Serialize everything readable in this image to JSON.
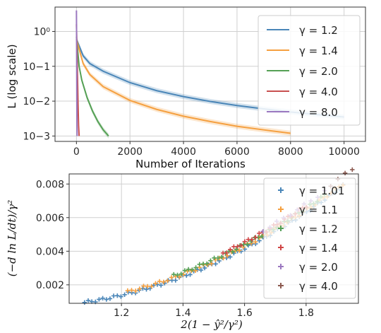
{
  "chart_data": [
    {
      "type": "line",
      "xlabel": "Number of Iterations",
      "ylabel": "L (log scale)",
      "yscale": "log",
      "xlim": [
        -800,
        10800
      ],
      "ylim": [
        0.0007,
        5
      ],
      "xticks": [
        0,
        2000,
        4000,
        6000,
        8000,
        10000
      ],
      "xtick_labels": [
        "0",
        "2000",
        "4000",
        "6000",
        "8000",
        "10000"
      ],
      "yticks": [
        0.001,
        0.01,
        0.1,
        1
      ],
      "ytick_labels": [
        "10−3",
        "10−2",
        "10−1",
        "10⁰"
      ],
      "grid": true,
      "legend_position": "top-right",
      "series": [
        {
          "name": "γ = 1.2",
          "color": "#4a86b8",
          "points": [
            [
              0,
              0.6
            ],
            [
              250,
              0.2
            ],
            [
              500,
              0.12
            ],
            [
              1000,
              0.072
            ],
            [
              2000,
              0.034
            ],
            [
              3000,
              0.02
            ],
            [
              4000,
              0.0135
            ],
            [
              5000,
              0.0098
            ],
            [
              6000,
              0.0075
            ],
            [
              7000,
              0.006
            ],
            [
              8000,
              0.0049
            ],
            [
              9000,
              0.0041
            ],
            [
              10000,
              0.0035
            ]
          ]
        },
        {
          "name": "γ = 1.4",
          "color": "#f5a040",
          "points": [
            [
              0,
              0.6
            ],
            [
              250,
              0.12
            ],
            [
              500,
              0.058
            ],
            [
              1000,
              0.026
            ],
            [
              2000,
              0.0105
            ],
            [
              3000,
              0.0058
            ],
            [
              4000,
              0.0037
            ],
            [
              5000,
              0.0026
            ],
            [
              6000,
              0.0019
            ],
            [
              7000,
              0.0015
            ],
            [
              8000,
              0.0012
            ]
          ]
        },
        {
          "name": "γ = 2.0",
          "color": "#55a055",
          "points": [
            [
              0,
              0.7
            ],
            [
              100,
              0.1
            ],
            [
              200,
              0.04
            ],
            [
              400,
              0.0125
            ],
            [
              600,
              0.0052
            ],
            [
              800,
              0.0026
            ],
            [
              1000,
              0.0015
            ],
            [
              1200,
              0.001
            ]
          ]
        },
        {
          "name": "γ = 4.0",
          "color": "#c85050",
          "points": [
            [
              0,
              1.6
            ],
            [
              20,
              0.3
            ],
            [
              40,
              0.05
            ],
            [
              60,
              0.008
            ],
            [
              80,
              0.002
            ],
            [
              100,
              0.001
            ]
          ]
        },
        {
          "name": "γ = 8.0",
          "color": "#9b78c0",
          "points": [
            [
              0,
              4.0
            ],
            [
              5,
              0.8
            ],
            [
              10,
              0.1
            ],
            [
              15,
              0.012
            ],
            [
              20,
              0.002
            ],
            [
              25,
              0.001
            ]
          ]
        }
      ]
    },
    {
      "type": "scatter",
      "xlabel": "2(1 − ŷ²/γ²)",
      "ylabel": "(−d ln L/dt)/γ²",
      "xlim": [
        1.03,
        1.97
      ],
      "ylim": [
        0.0009,
        0.0086
      ],
      "xticks": [
        1.2,
        1.4,
        1.6,
        1.8
      ],
      "xtick_labels": [
        "1.2",
        "1.4",
        "1.6",
        "1.8"
      ],
      "yticks": [
        0.002,
        0.004,
        0.006,
        0.008
      ],
      "ytick_labels": [
        "0.002",
        "0.004",
        "0.006",
        "0.008"
      ],
      "grid": true,
      "legend_position": "top-right",
      "marker": "plus",
      "series": [
        {
          "name": "γ = 1.01",
          "color": "#4a86b8",
          "x_range": [
            1.08,
            1.92
          ],
          "count": 72
        },
        {
          "name": "γ = 1.1",
          "color": "#f5a040",
          "x_range": [
            1.22,
            1.92
          ],
          "count": 55
        },
        {
          "name": "γ = 1.2",
          "color": "#55a055",
          "x_range": [
            1.37,
            1.86
          ],
          "count": 42
        },
        {
          "name": "γ = 1.4",
          "color": "#d04545",
          "x_range": [
            1.53,
            1.8
          ],
          "count": 24
        },
        {
          "name": "γ = 2.0",
          "color": "#9b78c0",
          "x_range": [
            1.66,
            1.86
          ],
          "count": 10
        },
        {
          "name": "γ = 4.0",
          "color": "#8c5a50",
          "x_range": [
            1.88,
            1.95
          ],
          "count": 4
        }
      ]
    }
  ]
}
